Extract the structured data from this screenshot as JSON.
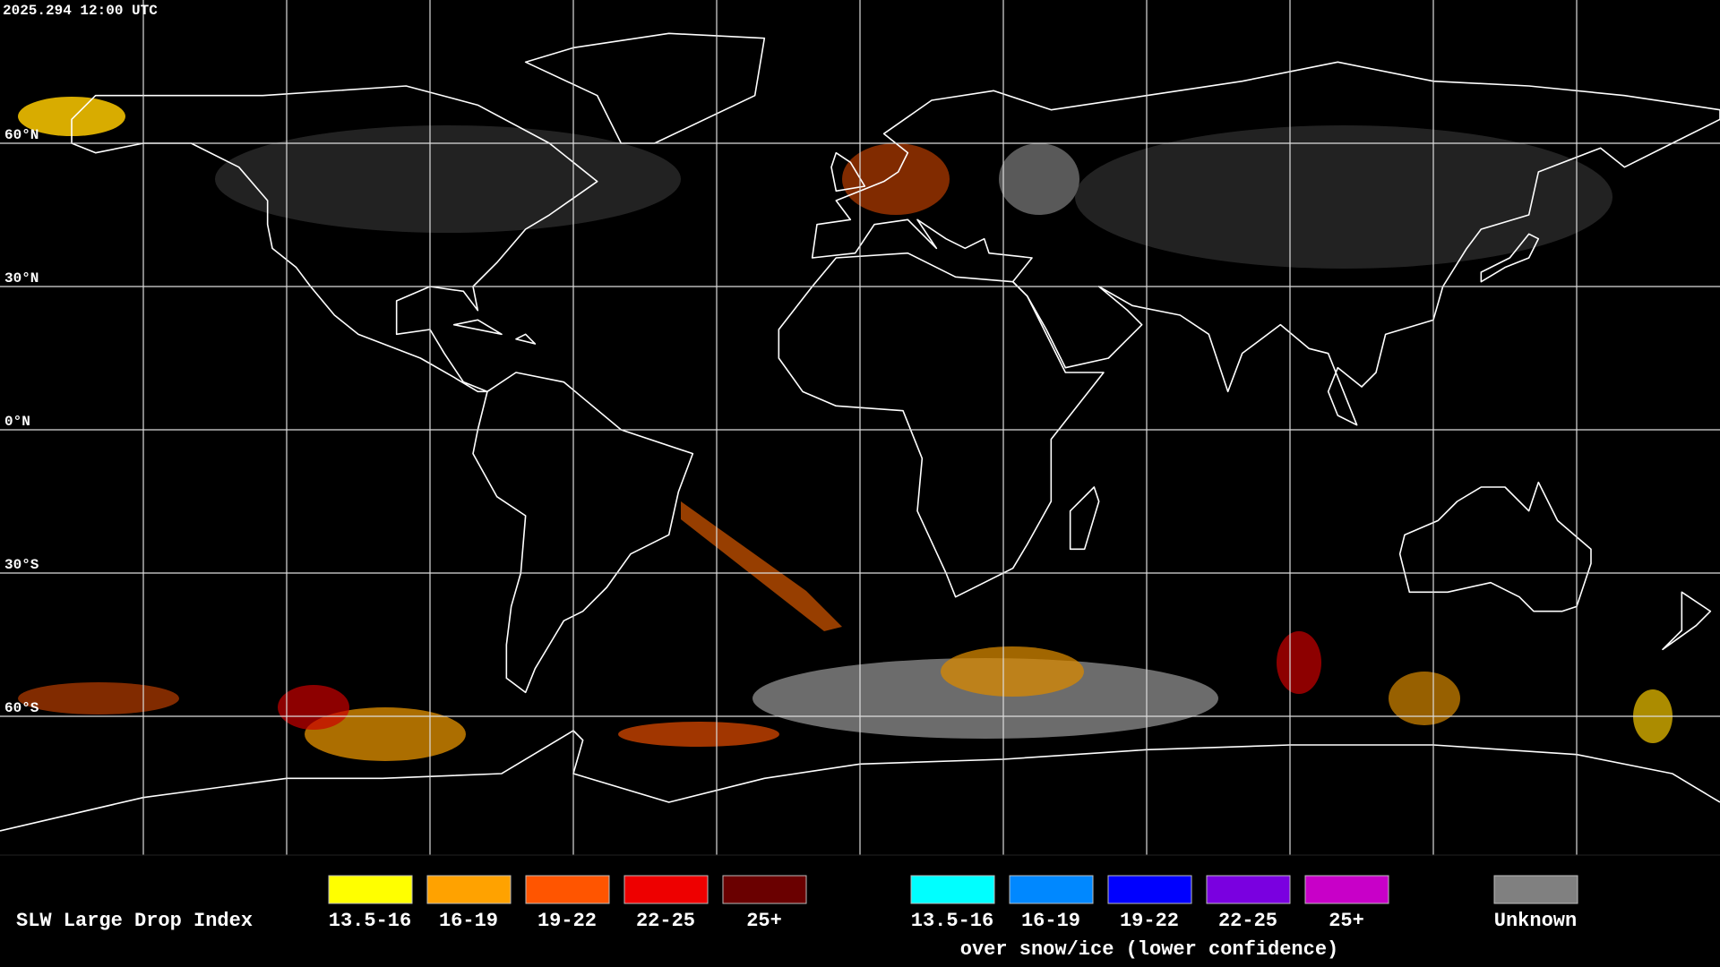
{
  "header": {
    "timestamp": "2025.294 12:00 UTC"
  },
  "map": {
    "lat_labels": [
      "60°N",
      "30°N",
      "0°N",
      "30°S",
      "60°S"
    ]
  },
  "legend": {
    "title": "SLW Large Drop Index",
    "items": [
      {
        "label": "13.5-16",
        "color": "#ffff00"
      },
      {
        "label": "16-19",
        "color": "#ffa200"
      },
      {
        "label": "19-22",
        "color": "#ff5500"
      },
      {
        "label": "22-25",
        "color": "#ee0000"
      },
      {
        "label": "25+",
        "color": "#6a0000"
      }
    ],
    "snow_items": [
      {
        "label": "13.5-16",
        "color": "#00ffff"
      },
      {
        "label": "16-19",
        "color": "#0088ff"
      },
      {
        "label": "19-22",
        "color": "#0000ff"
      },
      {
        "label": "22-25",
        "color": "#7a00e0"
      },
      {
        "label": "25+",
        "color": "#c800c8"
      }
    ],
    "snow_note": "over snow/ice (lower confidence)",
    "unknown": {
      "label": "Unknown",
      "color": "#808080"
    }
  }
}
